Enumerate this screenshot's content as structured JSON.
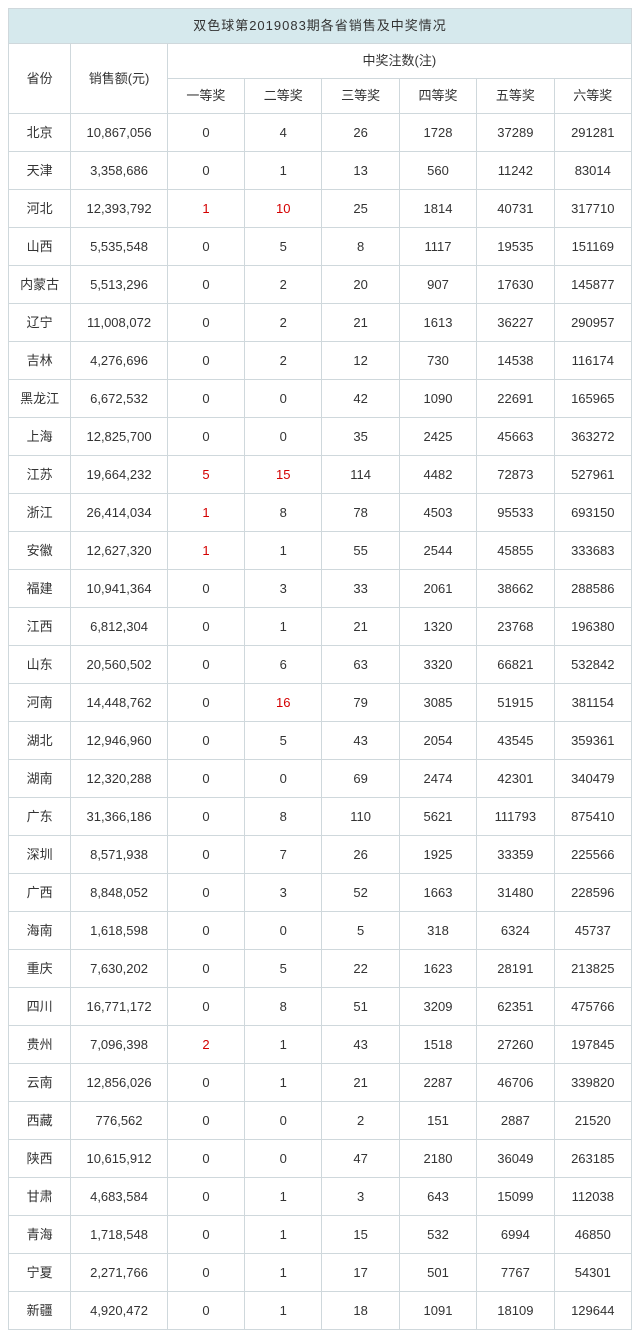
{
  "title": "双色球第2019083期各省销售及中奖情况",
  "headers": {
    "province": "省份",
    "sales": "销售额(元)",
    "prize_group": "中奖注数(注)",
    "prizes": [
      "一等奖",
      "二等奖",
      "三等奖",
      "四等奖",
      "五等奖",
      "六等奖"
    ]
  },
  "highlight_color": "#d40000",
  "rows": [
    {
      "p": "北京",
      "s": "10,867,056",
      "v": [
        "0",
        "4",
        "26",
        "1728",
        "37289",
        "291281"
      ],
      "r": [
        false,
        false,
        false,
        false,
        false,
        false
      ]
    },
    {
      "p": "天津",
      "s": "3,358,686",
      "v": [
        "0",
        "1",
        "13",
        "560",
        "11242",
        "83014"
      ],
      "r": [
        false,
        false,
        false,
        false,
        false,
        false
      ]
    },
    {
      "p": "河北",
      "s": "12,393,792",
      "v": [
        "1",
        "10",
        "25",
        "1814",
        "40731",
        "317710"
      ],
      "r": [
        true,
        true,
        false,
        false,
        false,
        false
      ]
    },
    {
      "p": "山西",
      "s": "5,535,548",
      "v": [
        "0",
        "5",
        "8",
        "1117",
        "19535",
        "151169"
      ],
      "r": [
        false,
        false,
        false,
        false,
        false,
        false
      ]
    },
    {
      "p": "内蒙古",
      "s": "5,513,296",
      "v": [
        "0",
        "2",
        "20",
        "907",
        "17630",
        "145877"
      ],
      "r": [
        false,
        false,
        false,
        false,
        false,
        false
      ]
    },
    {
      "p": "辽宁",
      "s": "11,008,072",
      "v": [
        "0",
        "2",
        "21",
        "1613",
        "36227",
        "290957"
      ],
      "r": [
        false,
        false,
        false,
        false,
        false,
        false
      ]
    },
    {
      "p": "吉林",
      "s": "4,276,696",
      "v": [
        "0",
        "2",
        "12",
        "730",
        "14538",
        "116174"
      ],
      "r": [
        false,
        false,
        false,
        false,
        false,
        false
      ]
    },
    {
      "p": "黑龙江",
      "s": "6,672,532",
      "v": [
        "0",
        "0",
        "42",
        "1090",
        "22691",
        "165965"
      ],
      "r": [
        false,
        false,
        false,
        false,
        false,
        false
      ]
    },
    {
      "p": "上海",
      "s": "12,825,700",
      "v": [
        "0",
        "0",
        "35",
        "2425",
        "45663",
        "363272"
      ],
      "r": [
        false,
        false,
        false,
        false,
        false,
        false
      ]
    },
    {
      "p": "江苏",
      "s": "19,664,232",
      "v": [
        "5",
        "15",
        "114",
        "4482",
        "72873",
        "527961"
      ],
      "r": [
        true,
        true,
        false,
        false,
        false,
        false
      ]
    },
    {
      "p": "浙江",
      "s": "26,414,034",
      "v": [
        "1",
        "8",
        "78",
        "4503",
        "95533",
        "693150"
      ],
      "r": [
        true,
        false,
        false,
        false,
        false,
        false
      ]
    },
    {
      "p": "安徽",
      "s": "12,627,320",
      "v": [
        "1",
        "1",
        "55",
        "2544",
        "45855",
        "333683"
      ],
      "r": [
        true,
        false,
        false,
        false,
        false,
        false
      ]
    },
    {
      "p": "福建",
      "s": "10,941,364",
      "v": [
        "0",
        "3",
        "33",
        "2061",
        "38662",
        "288586"
      ],
      "r": [
        false,
        false,
        false,
        false,
        false,
        false
      ]
    },
    {
      "p": "江西",
      "s": "6,812,304",
      "v": [
        "0",
        "1",
        "21",
        "1320",
        "23768",
        "196380"
      ],
      "r": [
        false,
        false,
        false,
        false,
        false,
        false
      ]
    },
    {
      "p": "山东",
      "s": "20,560,502",
      "v": [
        "0",
        "6",
        "63",
        "3320",
        "66821",
        "532842"
      ],
      "r": [
        false,
        false,
        false,
        false,
        false,
        false
      ]
    },
    {
      "p": "河南",
      "s": "14,448,762",
      "v": [
        "0",
        "16",
        "79",
        "3085",
        "51915",
        "381154"
      ],
      "r": [
        false,
        true,
        false,
        false,
        false,
        false
      ]
    },
    {
      "p": "湖北",
      "s": "12,946,960",
      "v": [
        "0",
        "5",
        "43",
        "2054",
        "43545",
        "359361"
      ],
      "r": [
        false,
        false,
        false,
        false,
        false,
        false
      ]
    },
    {
      "p": "湖南",
      "s": "12,320,288",
      "v": [
        "0",
        "0",
        "69",
        "2474",
        "42301",
        "340479"
      ],
      "r": [
        false,
        false,
        false,
        false,
        false,
        false
      ]
    },
    {
      "p": "广东",
      "s": "31,366,186",
      "v": [
        "0",
        "8",
        "110",
        "5621",
        "111793",
        "875410"
      ],
      "r": [
        false,
        false,
        false,
        false,
        false,
        false
      ]
    },
    {
      "p": "深圳",
      "s": "8,571,938",
      "v": [
        "0",
        "7",
        "26",
        "1925",
        "33359",
        "225566"
      ],
      "r": [
        false,
        false,
        false,
        false,
        false,
        false
      ]
    },
    {
      "p": "广西",
      "s": "8,848,052",
      "v": [
        "0",
        "3",
        "52",
        "1663",
        "31480",
        "228596"
      ],
      "r": [
        false,
        false,
        false,
        false,
        false,
        false
      ]
    },
    {
      "p": "海南",
      "s": "1,618,598",
      "v": [
        "0",
        "0",
        "5",
        "318",
        "6324",
        "45737"
      ],
      "r": [
        false,
        false,
        false,
        false,
        false,
        false
      ]
    },
    {
      "p": "重庆",
      "s": "7,630,202",
      "v": [
        "0",
        "5",
        "22",
        "1623",
        "28191",
        "213825"
      ],
      "r": [
        false,
        false,
        false,
        false,
        false,
        false
      ]
    },
    {
      "p": "四川",
      "s": "16,771,172",
      "v": [
        "0",
        "8",
        "51",
        "3209",
        "62351",
        "475766"
      ],
      "r": [
        false,
        false,
        false,
        false,
        false,
        false
      ]
    },
    {
      "p": "贵州",
      "s": "7,096,398",
      "v": [
        "2",
        "1",
        "43",
        "1518",
        "27260",
        "197845"
      ],
      "r": [
        true,
        false,
        false,
        false,
        false,
        false
      ]
    },
    {
      "p": "云南",
      "s": "12,856,026",
      "v": [
        "0",
        "1",
        "21",
        "2287",
        "46706",
        "339820"
      ],
      "r": [
        false,
        false,
        false,
        false,
        false,
        false
      ]
    },
    {
      "p": "西藏",
      "s": "776,562",
      "v": [
        "0",
        "0",
        "2",
        "151",
        "2887",
        "21520"
      ],
      "r": [
        false,
        false,
        false,
        false,
        false,
        false
      ]
    },
    {
      "p": "陕西",
      "s": "10,615,912",
      "v": [
        "0",
        "0",
        "47",
        "2180",
        "36049",
        "263185"
      ],
      "r": [
        false,
        false,
        false,
        false,
        false,
        false
      ]
    },
    {
      "p": "甘肃",
      "s": "4,683,584",
      "v": [
        "0",
        "1",
        "3",
        "643",
        "15099",
        "112038"
      ],
      "r": [
        false,
        false,
        false,
        false,
        false,
        false
      ]
    },
    {
      "p": "青海",
      "s": "1,718,548",
      "v": [
        "0",
        "1",
        "15",
        "532",
        "6994",
        "46850"
      ],
      "r": [
        false,
        false,
        false,
        false,
        false,
        false
      ]
    },
    {
      "p": "宁夏",
      "s": "2,271,766",
      "v": [
        "0",
        "1",
        "17",
        "501",
        "7767",
        "54301"
      ],
      "r": [
        false,
        false,
        false,
        false,
        false,
        false
      ]
    },
    {
      "p": "新疆",
      "s": "4,920,472",
      "v": [
        "0",
        "1",
        "18",
        "1091",
        "18109",
        "129644"
      ],
      "r": [
        false,
        false,
        false,
        false,
        false,
        false
      ]
    }
  ]
}
